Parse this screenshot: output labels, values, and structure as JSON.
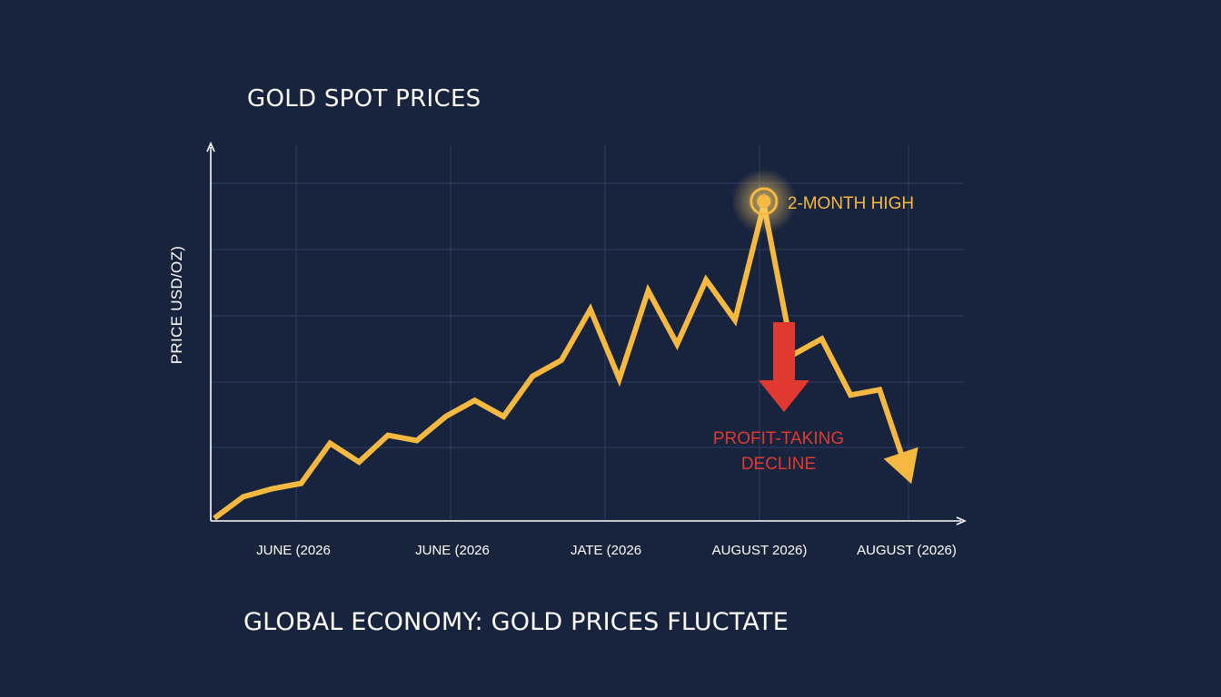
{
  "title": "GOLD SPOT PRICES",
  "caption": "GLOBAL ECONOMY: GOLD PRICES FLUCTATE",
  "colors": {
    "background": "#18233d",
    "grid": "#2c3a5c",
    "axis": "#ffffff",
    "line": "#f5b942",
    "annotation_high": "#f5b942",
    "annotation_decline": "#e03a30",
    "text": "#ffffff"
  },
  "chart_data": {
    "type": "line",
    "title": "GOLD SPOT PRICES",
    "ylabel": "PRICE USD/OZ)",
    "xlabel": "",
    "x_tick_labels": [
      "JUNE (2026",
      "JUNE (2026",
      "JATE (2026",
      "AUGUST 2026)",
      "AUGUST (2026)"
    ],
    "y_tick_labels_shown": false,
    "grid": true,
    "ylim": [
      0,
      100
    ],
    "series": [
      {
        "values": [
          0,
          8,
          11,
          13,
          28,
          21,
          31,
          29,
          38,
          44,
          38,
          53,
          59,
          78,
          52,
          85,
          65,
          89,
          74,
          117,
          61,
          67,
          46,
          48,
          16
        ]
      }
    ],
    "annotations": [
      {
        "text": "2-MONTH HIGH",
        "icon": "target-marker-icon",
        "point_index": 19
      },
      {
        "text_line1": "PROFIT-TAKING",
        "text_line2": "DECLINE",
        "icon": "down-arrow-icon"
      }
    ]
  }
}
